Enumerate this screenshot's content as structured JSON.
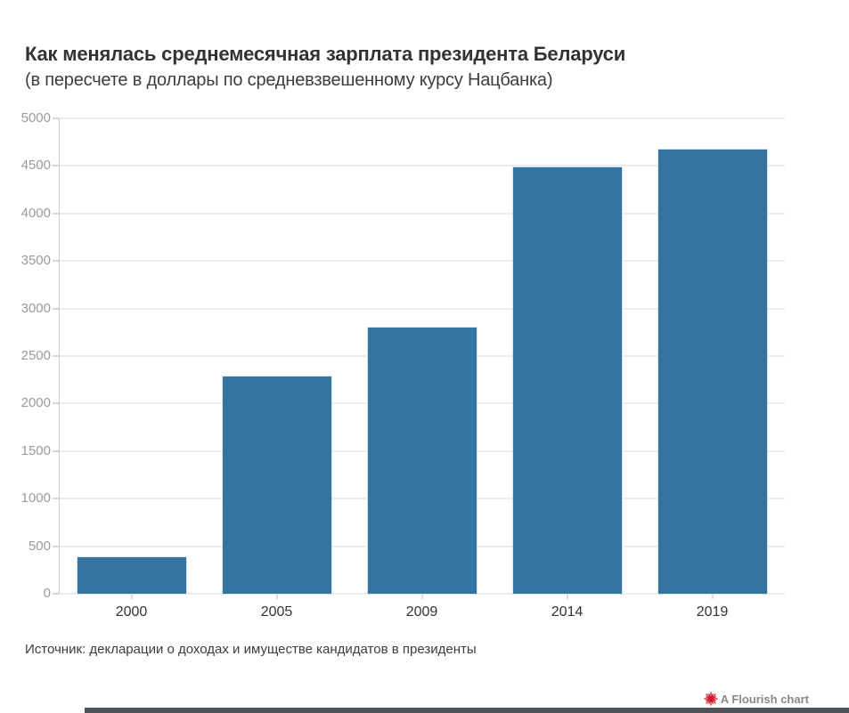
{
  "header": {
    "title": "Как менялась среднемесячная зарплата президента Беларуси",
    "subtitle": "(в пересчете в доллары по средневзвешенному курсу Нацбанка)"
  },
  "chart_data": {
    "type": "bar",
    "categories": [
      "2000",
      "2005",
      "2009",
      "2014",
      "2019"
    ],
    "values": [
      385,
      2285,
      2800,
      4485,
      4670
    ],
    "title": "Как менялась среднемесячная зарплата президента Беларуси",
    "subtitle": "(в пересчете в доллары по средневзвешенному курсу Нацбанка)",
    "xlabel": "",
    "ylabel": "",
    "ylim": [
      0,
      5000
    ],
    "yticks": [
      0,
      500,
      1000,
      1500,
      2000,
      2500,
      3000,
      3500,
      4000,
      4500,
      5000
    ],
    "grid": "horizontal",
    "legend": "none",
    "bar_color": "#33759e"
  },
  "footer": {
    "source": "Источник: декларации о доходах и имуществе кандидатов в президенты"
  },
  "attribution": {
    "label": "A Flourish chart",
    "icon": "flourish-starburst-icon",
    "icon_color": "#cc1f2e",
    "text_color": "#888888"
  },
  "colors": {
    "background": "#ffffff",
    "bar": "#33759e",
    "gridline": "#ececec",
    "axis_line": "#cccccc",
    "y_label": "#9a9a9a",
    "x_label": "#333333",
    "title": "#333333",
    "scrollbar": "#4e5357"
  }
}
